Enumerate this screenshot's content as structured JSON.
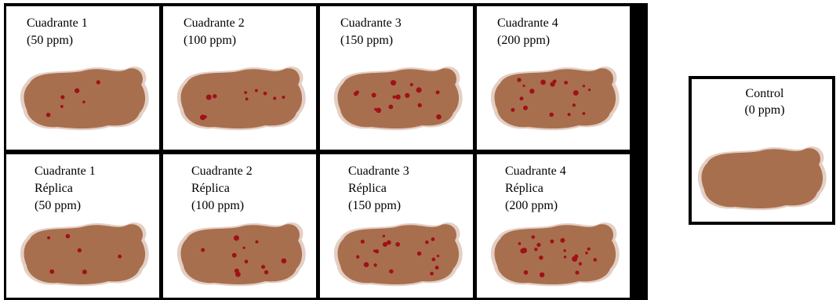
{
  "panels": [
    {
      "lines": [
        "Cuadrante 1",
        "(50 ppm)"
      ]
    },
    {
      "lines": [
        "Cuadrante 2",
        "(100 ppm)"
      ]
    },
    {
      "lines": [
        "Cuadrante 3",
        "(150 ppm)"
      ]
    },
    {
      "lines": [
        "Cuadrante 4",
        "(200 ppm)"
      ]
    },
    {
      "lines": [
        "Cuadrante 1",
        "Réplica",
        "(50 ppm)"
      ]
    },
    {
      "lines": [
        "Cuadrante 2",
        "Réplica",
        "(100 ppm)"
      ]
    },
    {
      "lines": [
        "Cuadrante 3",
        "Réplica",
        "(150 ppm)"
      ]
    },
    {
      "lines": [
        "Cuadrante 4",
        "Réplica",
        "(200 ppm)"
      ]
    }
  ],
  "control": {
    "lines": [
      "Control",
      "(0 ppm)"
    ]
  }
}
